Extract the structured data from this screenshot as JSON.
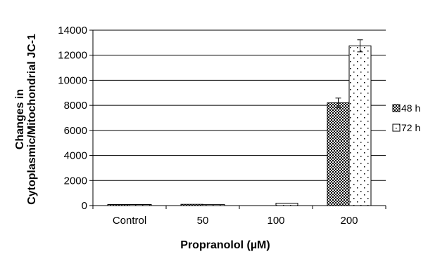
{
  "chart_data": {
    "type": "bar",
    "categories": [
      "Control",
      "50",
      "100",
      "200"
    ],
    "series": [
      {
        "name": "48 h",
        "values": [
          50,
          100,
          0,
          8200
        ],
        "errors": [
          0,
          0,
          0,
          380
        ],
        "pattern": "crosshatch"
      },
      {
        "name": "72 h",
        "values": [
          30,
          90,
          190,
          12750
        ],
        "errors": [
          0,
          0,
          0,
          480
        ],
        "pattern": "dots"
      }
    ],
    "y_ticks": [
      "0",
      "2000",
      "4000",
      "6000",
      "8000",
      "10000",
      "12000",
      "14000"
    ],
    "ylim": [
      0,
      14000
    ],
    "xlabel": "Propranolol  (µM)",
    "ylabel_lines": [
      "Changes in",
      "Cytoplasmic/Mitochondrial JC-1"
    ],
    "grid": true,
    "legend_position": "right"
  }
}
